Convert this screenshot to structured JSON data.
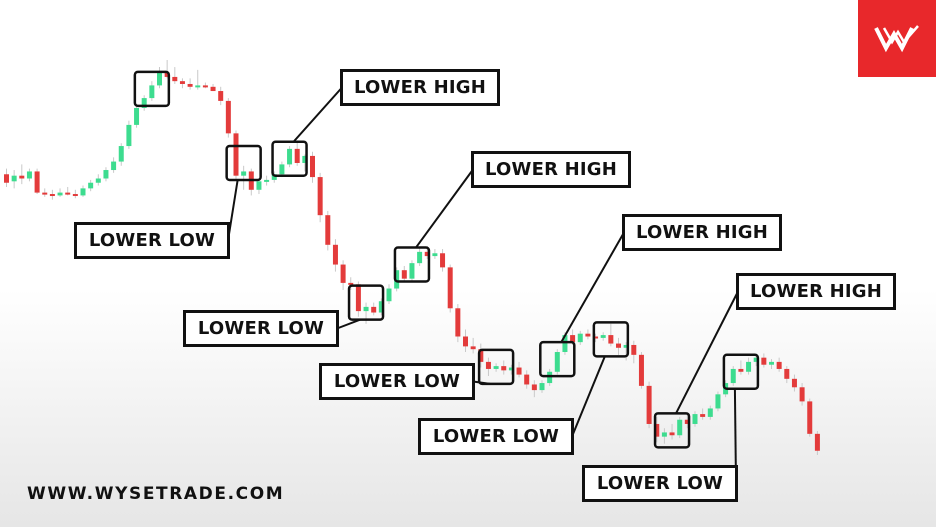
{
  "brand": {
    "logo_icon": "wysetrade-logo-icon",
    "logo_color": "#e8282b",
    "website": "WWW.WYSETRADE.COM"
  },
  "colors": {
    "bull": "#3ddc8f",
    "bear": "#e33b3b",
    "wick": "#c9c9c9",
    "annotation": "#111111"
  },
  "chart_data": {
    "type": "candlestick",
    "title": "",
    "xlabel": "",
    "ylabel": "",
    "axes_visible": false,
    "grid": false,
    "y_direction": "price",
    "candles": [
      {
        "o": 194,
        "h": 198,
        "l": 185,
        "c": 188
      },
      {
        "o": 189,
        "h": 197,
        "l": 184,
        "c": 193
      },
      {
        "o": 193,
        "h": 201,
        "l": 187,
        "c": 191
      },
      {
        "o": 191,
        "h": 198,
        "l": 189,
        "c": 196
      },
      {
        "o": 196,
        "h": 198,
        "l": 180,
        "c": 181
      },
      {
        "o": 181,
        "h": 184,
        "l": 178,
        "c": 180
      },
      {
        "o": 180,
        "h": 183,
        "l": 176,
        "c": 179
      },
      {
        "o": 179,
        "h": 184,
        "l": 178,
        "c": 181
      },
      {
        "o": 181,
        "h": 185,
        "l": 179,
        "c": 180
      },
      {
        "o": 180,
        "h": 183,
        "l": 177,
        "c": 179
      },
      {
        "o": 179,
        "h": 186,
        "l": 178,
        "c": 184
      },
      {
        "o": 184,
        "h": 190,
        "l": 182,
        "c": 188
      },
      {
        "o": 188,
        "h": 194,
        "l": 186,
        "c": 191
      },
      {
        "o": 191,
        "h": 199,
        "l": 189,
        "c": 197
      },
      {
        "o": 197,
        "h": 206,
        "l": 195,
        "c": 203
      },
      {
        "o": 203,
        "h": 216,
        "l": 200,
        "c": 214
      },
      {
        "o": 214,
        "h": 232,
        "l": 212,
        "c": 229
      },
      {
        "o": 229,
        "h": 244,
        "l": 227,
        "c": 241
      },
      {
        "o": 241,
        "h": 250,
        "l": 239,
        "c": 248
      },
      {
        "o": 248,
        "h": 260,
        "l": 246,
        "c": 257
      },
      {
        "o": 257,
        "h": 270,
        "l": 255,
        "c": 266
      },
      {
        "o": 266,
        "h": 275,
        "l": 262,
        "c": 263
      },
      {
        "o": 263,
        "h": 270,
        "l": 258,
        "c": 260
      },
      {
        "o": 260,
        "h": 262,
        "l": 255,
        "c": 258
      },
      {
        "o": 258,
        "h": 262,
        "l": 254,
        "c": 256
      },
      {
        "o": 256,
        "h": 268,
        "l": 254,
        "c": 257
      },
      {
        "o": 257,
        "h": 259,
        "l": 255,
        "c": 256
      },
      {
        "o": 256,
        "h": 258,
        "l": 253,
        "c": 253
      },
      {
        "o": 253,
        "h": 256,
        "l": 243,
        "c": 246
      },
      {
        "o": 246,
        "h": 248,
        "l": 220,
        "c": 223
      },
      {
        "o": 223,
        "h": 225,
        "l": 190,
        "c": 193
      },
      {
        "o": 193,
        "h": 200,
        "l": 183,
        "c": 196
      },
      {
        "o": 196,
        "h": 198,
        "l": 179,
        "c": 183
      },
      {
        "o": 183,
        "h": 190,
        "l": 180,
        "c": 189
      },
      {
        "o": 189,
        "h": 193,
        "l": 186,
        "c": 190
      },
      {
        "o": 190,
        "h": 196,
        "l": 188,
        "c": 194
      },
      {
        "o": 194,
        "h": 203,
        "l": 192,
        "c": 201
      },
      {
        "o": 201,
        "h": 214,
        "l": 199,
        "c": 212
      },
      {
        "o": 212,
        "h": 218,
        "l": 200,
        "c": 202
      },
      {
        "o": 202,
        "h": 208,
        "l": 196,
        "c": 207
      },
      {
        "o": 207,
        "h": 210,
        "l": 188,
        "c": 192
      },
      {
        "o": 192,
        "h": 195,
        "l": 160,
        "c": 165
      },
      {
        "o": 165,
        "h": 168,
        "l": 140,
        "c": 144
      },
      {
        "o": 144,
        "h": 148,
        "l": 125,
        "c": 130
      },
      {
        "o": 130,
        "h": 133,
        "l": 112,
        "c": 117
      },
      {
        "o": 117,
        "h": 121,
        "l": 112,
        "c": 116
      },
      {
        "o": 116,
        "h": 118,
        "l": 93,
        "c": 97
      },
      {
        "o": 97,
        "h": 103,
        "l": 88,
        "c": 100
      },
      {
        "o": 100,
        "h": 103,
        "l": 94,
        "c": 96
      },
      {
        "o": 96,
        "h": 106,
        "l": 94,
        "c": 104
      },
      {
        "o": 104,
        "h": 116,
        "l": 102,
        "c": 113
      },
      {
        "o": 113,
        "h": 128,
        "l": 111,
        "c": 126
      },
      {
        "o": 126,
        "h": 129,
        "l": 118,
        "c": 120
      },
      {
        "o": 120,
        "h": 133,
        "l": 118,
        "c": 131
      },
      {
        "o": 131,
        "h": 142,
        "l": 129,
        "c": 139
      },
      {
        "o": 139,
        "h": 143,
        "l": 134,
        "c": 136
      },
      {
        "o": 136,
        "h": 141,
        "l": 134,
        "c": 138
      },
      {
        "o": 138,
        "h": 141,
        "l": 125,
        "c": 128
      },
      {
        "o": 128,
        "h": 130,
        "l": 96,
        "c": 99
      },
      {
        "o": 99,
        "h": 102,
        "l": 75,
        "c": 79
      },
      {
        "o": 79,
        "h": 84,
        "l": 68,
        "c": 72
      },
      {
        "o": 72,
        "h": 78,
        "l": 67,
        "c": 70
      },
      {
        "o": 70,
        "h": 74,
        "l": 57,
        "c": 61
      },
      {
        "o": 61,
        "h": 64,
        "l": 51,
        "c": 56
      },
      {
        "o": 56,
        "h": 60,
        "l": 54,
        "c": 58
      },
      {
        "o": 58,
        "h": 62,
        "l": 52,
        "c": 55
      },
      {
        "o": 55,
        "h": 59,
        "l": 52,
        "c": 57
      },
      {
        "o": 57,
        "h": 61,
        "l": 50,
        "c": 52
      },
      {
        "o": 52,
        "h": 55,
        "l": 42,
        "c": 45
      },
      {
        "o": 45,
        "h": 48,
        "l": 36,
        "c": 41
      },
      {
        "o": 41,
        "h": 48,
        "l": 39,
        "c": 46
      },
      {
        "o": 46,
        "h": 56,
        "l": 44,
        "c": 54
      },
      {
        "o": 54,
        "h": 70,
        "l": 52,
        "c": 68
      },
      {
        "o": 68,
        "h": 82,
        "l": 66,
        "c": 80
      },
      {
        "o": 80,
        "h": 84,
        "l": 73,
        "c": 75
      },
      {
        "o": 75,
        "h": 83,
        "l": 73,
        "c": 81
      },
      {
        "o": 81,
        "h": 84,
        "l": 77,
        "c": 79
      },
      {
        "o": 79,
        "h": 81,
        "l": 75,
        "c": 78
      },
      {
        "o": 78,
        "h": 82,
        "l": 76,
        "c": 80
      },
      {
        "o": 80,
        "h": 88,
        "l": 72,
        "c": 74
      },
      {
        "o": 74,
        "h": 78,
        "l": 66,
        "c": 71
      },
      {
        "o": 71,
        "h": 75,
        "l": 62,
        "c": 73
      },
      {
        "o": 73,
        "h": 76,
        "l": 60,
        "c": 66
      },
      {
        "o": 66,
        "h": 68,
        "l": 42,
        "c": 44
      },
      {
        "o": 44,
        "h": 47,
        "l": 14,
        "c": 17
      },
      {
        "o": 17,
        "h": 22,
        "l": 4,
        "c": 8
      },
      {
        "o": 8,
        "h": 14,
        "l": 3,
        "c": 11
      },
      {
        "o": 11,
        "h": 17,
        "l": 6,
        "c": 9
      },
      {
        "o": 9,
        "h": 22,
        "l": 7,
        "c": 20
      },
      {
        "o": 20,
        "h": 24,
        "l": 14,
        "c": 17
      },
      {
        "o": 17,
        "h": 26,
        "l": 15,
        "c": 24
      },
      {
        "o": 24,
        "h": 28,
        "l": 20,
        "c": 22
      },
      {
        "o": 22,
        "h": 30,
        "l": 20,
        "c": 28
      },
      {
        "o": 28,
        "h": 40,
        "l": 26,
        "c": 38
      },
      {
        "o": 38,
        "h": 48,
        "l": 36,
        "c": 46
      },
      {
        "o": 46,
        "h": 58,
        "l": 44,
        "c": 56
      },
      {
        "o": 56,
        "h": 62,
        "l": 52,
        "c": 54
      },
      {
        "o": 54,
        "h": 64,
        "l": 52,
        "c": 61
      },
      {
        "o": 61,
        "h": 66,
        "l": 58,
        "c": 64
      },
      {
        "o": 64,
        "h": 67,
        "l": 57,
        "c": 59
      },
      {
        "o": 59,
        "h": 63,
        "l": 56,
        "c": 61
      },
      {
        "o": 61,
        "h": 64,
        "l": 54,
        "c": 56
      },
      {
        "o": 56,
        "h": 58,
        "l": 46,
        "c": 49
      },
      {
        "o": 49,
        "h": 52,
        "l": 40,
        "c": 43
      },
      {
        "o": 43,
        "h": 46,
        "l": 30,
        "c": 33
      },
      {
        "o": 33,
        "h": 35,
        "l": 8,
        "c": 10
      },
      {
        "o": 10,
        "h": 12,
        "l": -5,
        "c": -2
      }
    ],
    "annotations": [
      {
        "label": "",
        "kind": "box",
        "candle": 19
      },
      {
        "label": "LOWER LOW",
        "kind": "low",
        "candle": 31
      },
      {
        "label": "LOWER HIGH",
        "kind": "high",
        "candle": 37
      },
      {
        "label": "LOWER LOW",
        "kind": "low",
        "candle": 47
      },
      {
        "label": "LOWER HIGH",
        "kind": "high",
        "candle": 53
      },
      {
        "label": "LOWER LOW",
        "kind": "low",
        "candle": 64
      },
      {
        "label": "LOWER HIGH",
        "kind": "high",
        "candle": 72
      },
      {
        "label": "LOWER LOW",
        "kind": "low",
        "candle": 79
      },
      {
        "label": "LOWER HIGH",
        "kind": "high",
        "candle": 87
      },
      {
        "label": "LOWER LOW",
        "kind": "low",
        "candle": 96
      }
    ]
  }
}
